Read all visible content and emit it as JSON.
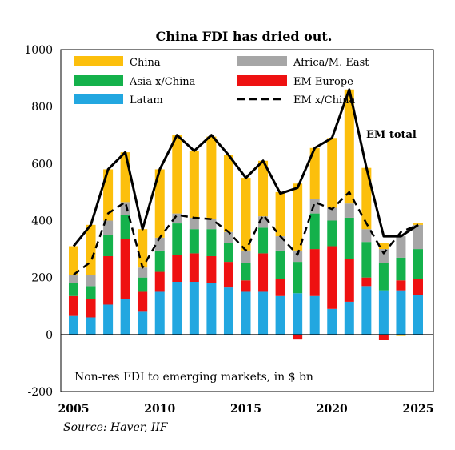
{
  "chart_data": {
    "type": "bar",
    "title": "China FDI has dried out.",
    "note": "Non-res FDI to emerging markets, in $ bn",
    "source": "Source: Haver, IIF",
    "annotation": "EM total",
    "ylim": [
      -200,
      1000
    ],
    "yticks": [
      "1000",
      "800",
      "600",
      "400",
      "200",
      "0",
      "-200"
    ],
    "ytick_values": [
      1000,
      800,
      600,
      400,
      200,
      0,
      -200
    ],
    "xticks": [
      "2005",
      "2010",
      "2015",
      "2020",
      "2025"
    ],
    "xtick_values": [
      2005,
      2010,
      2015,
      2020,
      2025
    ],
    "x": [
      2005,
      2006,
      2007,
      2008,
      2009,
      2010,
      2011,
      2012,
      2013,
      2014,
      2015,
      2016,
      2017,
      2018,
      2019,
      2020,
      2021,
      2022,
      2023,
      2024,
      2025
    ],
    "bar_series": [
      {
        "name": "Latam",
        "color": "#22a7e0",
        "values": [
          65,
          60,
          105,
          125,
          80,
          150,
          185,
          185,
          180,
          165,
          150,
          150,
          135,
          145,
          135,
          90,
          115,
          170,
          155,
          155,
          140
        ]
      },
      {
        "name": "EM Europe",
        "color": "#ee1111",
        "values": [
          70,
          65,
          170,
          210,
          70,
          70,
          95,
          100,
          95,
          90,
          40,
          135,
          60,
          -15,
          165,
          220,
          150,
          30,
          -20,
          35,
          55
        ]
      },
      {
        "name": "Asia x/China",
        "color": "#14b14b",
        "values": [
          45,
          45,
          75,
          85,
          50,
          75,
          110,
          85,
          95,
          65,
          60,
          90,
          100,
          110,
          125,
          90,
          145,
          125,
          95,
          80,
          105
        ]
      },
      {
        "name": "Africa/M. East",
        "color": "#a6a6a6",
        "values": [
          30,
          40,
          50,
          45,
          35,
          45,
          35,
          40,
          35,
          40,
          45,
          40,
          50,
          40,
          50,
          45,
          50,
          45,
          50,
          75,
          85
        ]
      },
      {
        "name": "China",
        "color": "#fcbf0c",
        "values": [
          100,
          175,
          180,
          175,
          135,
          240,
          275,
          235,
          290,
          270,
          255,
          195,
          155,
          235,
          180,
          245,
          400,
          215,
          20,
          -5,
          5
        ]
      }
    ],
    "line_series": [
      {
        "name": "EM total",
        "style": "solid",
        "color": "#000000",
        "values": [
          310,
          385,
          580,
          640,
          370,
          580,
          700,
          645,
          700,
          630,
          550,
          610,
          495,
          515,
          655,
          690,
          860,
          585,
          345,
          345,
          385
        ]
      },
      {
        "name": "EM x/China",
        "style": "dashed",
        "color": "#000000",
        "values": [
          210,
          255,
          425,
          465,
          235,
          340,
          420,
          410,
          405,
          360,
          295,
          420,
          345,
          280,
          465,
          440,
          500,
          390,
          285,
          360,
          385
        ]
      }
    ],
    "legend": [
      {
        "label": "China",
        "color": "#fcbf0c",
        "kind": "box"
      },
      {
        "label": "Africa/M. East",
        "color": "#a6a6a6",
        "kind": "box"
      },
      {
        "label": "Asia x/China",
        "color": "#14b14b",
        "kind": "box"
      },
      {
        "label": "EM Europe",
        "color": "#ee1111",
        "kind": "box"
      },
      {
        "label": "Latam",
        "color": "#22a7e0",
        "kind": "box"
      },
      {
        "label": "EM x/China",
        "color": "#000000",
        "kind": "dashed-line"
      }
    ]
  }
}
